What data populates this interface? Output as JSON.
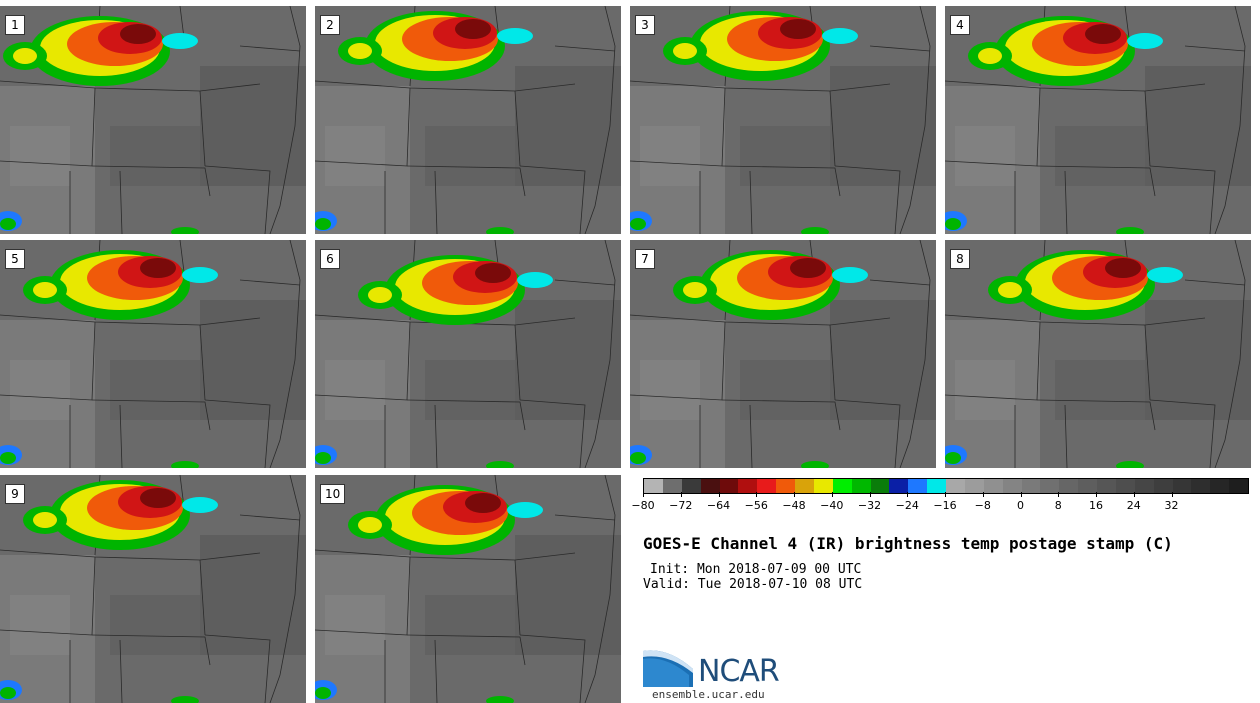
{
  "panels": [
    {
      "label": "1"
    },
    {
      "label": "2"
    },
    {
      "label": "3"
    },
    {
      "label": "4"
    },
    {
      "label": "5"
    },
    {
      "label": "6"
    },
    {
      "label": "7"
    },
    {
      "label": "8"
    },
    {
      "label": "9"
    },
    {
      "label": "10"
    }
  ],
  "colorbar": {
    "colors": [
      "#b4b4b4",
      "#6e6e6e",
      "#3a3a3a",
      "#4a1010",
      "#6e0b0b",
      "#b00f0f",
      "#e81b1b",
      "#f05a0a",
      "#d9a30a",
      "#e8e800",
      "#00ee00",
      "#00b800",
      "#0a7d0a",
      "#0a1fa6",
      "#1e78ff",
      "#00e8e8",
      "#a8a8a8",
      "#9c9c9c",
      "#909090",
      "#848484",
      "#7a7a7a",
      "#707070",
      "#666666",
      "#5e5e5e",
      "#565656",
      "#4e4e4e",
      "#464646",
      "#3e3e3e",
      "#363636",
      "#2e2e2e",
      "#262626",
      "#1e1e1e"
    ],
    "ticks": [
      "−80",
      "−72",
      "−64",
      "−56",
      "−48",
      "−40",
      "−32",
      "−24",
      "−16",
      "−8",
      "0",
      "8",
      "16",
      "24",
      "32"
    ]
  },
  "title": "GOES-E Channel 4 (IR) brightness temp postage stamp (C)",
  "init": "Init: Mon 2018-07-09 00 UTC",
  "valid": "Valid: Tue 2018-07-10 08 UTC",
  "logo_text": "NCAR",
  "site": "ensemble.ucar.edu"
}
